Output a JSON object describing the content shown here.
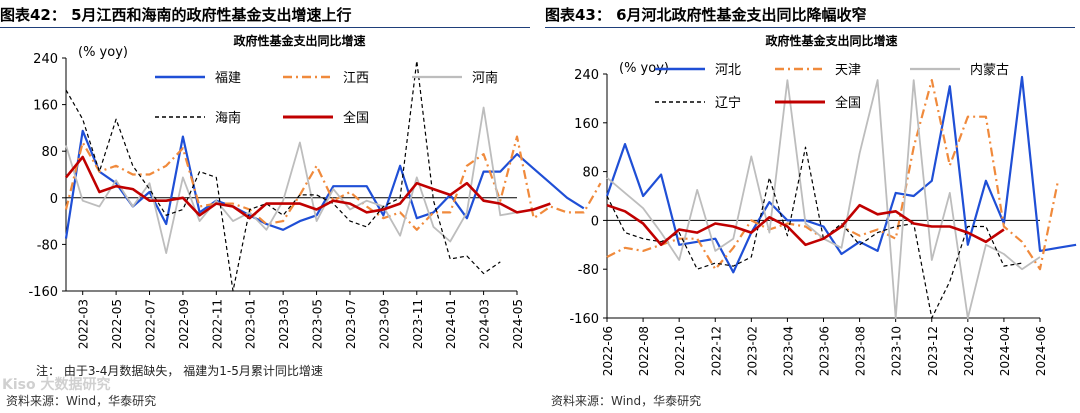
{
  "panels": [
    {
      "figure_title": "图表42：   5月江西和海南的政府性基金支出增速上行",
      "note": "注：  由于3-4月数据缺失，  福建为1-5月累计同比增速",
      "source": "资料来源：Wind，华泰研究",
      "chart_data": {
        "type": "line",
        "title": "政府性基金支出同比增速",
        "ylabel": "(% yoy)",
        "ylim": [
          -160,
          240
        ],
        "yticks": [
          "240",
          "160",
          "80",
          "0",
          "-80",
          "-160"
        ],
        "ytick_values": [
          240,
          160,
          80,
          0,
          -80,
          -160
        ],
        "x_tick_labels": [
          "2022-03",
          "2022-05",
          "2022-07",
          "2022-09",
          "2022-11",
          "2023-01",
          "2023-03",
          "2023-05",
          "2023-07",
          "2023-09",
          "2023-11",
          "2024-01",
          "2024-03",
          "2024-05"
        ],
        "x_tick_index": [
          1,
          3,
          5,
          7,
          9,
          11,
          13,
          15,
          17,
          19,
          21,
          23,
          25,
          27
        ],
        "n_points": 28,
        "legend_placement": "top",
        "series": [
          {
            "name": "福建",
            "color": "#1f4fd6",
            "style": "solid",
            "width": 2.2,
            "values": [
              -70,
              115,
              45,
              25,
              -15,
              10,
              -45,
              105,
              -25,
              -5,
              -15,
              -30,
              -45,
              -55,
              -40,
              -30,
              20,
              20,
              20,
              -30,
              55,
              -35,
              -25,
              5,
              -35,
              45,
              45,
              75,
              50,
              25,
              0,
              -18
            ]
          },
          {
            "name": "江西",
            "color": "#f08a3c",
            "style": "dashdot",
            "width": 2.2,
            "values": [
              -20,
              95,
              45,
              55,
              40,
              40,
              55,
              85,
              -15,
              -10,
              -10,
              -20,
              -45,
              -40,
              5,
              55,
              -5,
              10,
              -15,
              -35,
              -25,
              -55,
              -25,
              -25,
              55,
              75,
              -5,
              105,
              -35,
              -15,
              -25,
              -25,
              25
            ]
          },
          {
            "name": "河南",
            "color": "#bdbdbd",
            "style": "solid",
            "width": 1.8,
            "values": [
              90,
              -5,
              -15,
              30,
              -15,
              25,
              -95,
              35,
              -40,
              -5,
              -40,
              -25,
              -55,
              -5,
              95,
              -40,
              15,
              -20,
              -5,
              -15,
              -65,
              35,
              -50,
              -75,
              -25,
              155,
              -30,
              -25,
              -20
            ]
          },
          {
            "name": "海南",
            "color": "#000000",
            "style": "dashed",
            "width": 1.2,
            "values": [
              185,
              135,
              45,
              135,
              55,
              15,
              -30,
              -20,
              45,
              35,
              -160,
              -20,
              -10,
              -30,
              5,
              5,
              -10,
              -40,
              -50,
              -15,
              0,
              235,
              -5,
              -105,
              -100,
              -130,
              -110
            ]
          },
          {
            "name": "全国",
            "color": "#c00000",
            "style": "solid",
            "width": 2.6,
            "values": [
              35,
              70,
              10,
              20,
              15,
              -5,
              -5,
              0,
              -30,
              -10,
              -15,
              -35,
              -10,
              -10,
              -10,
              -20,
              -5,
              -10,
              -25,
              -20,
              -10,
              25,
              15,
              5,
              25,
              -5,
              -10,
              -25,
              -20,
              -10
            ]
          }
        ]
      }
    },
    {
      "figure_title": "图表43：   6月河北政府性基金支出同比降幅收窄",
      "note": "",
      "source": "资料来源：Wind，华泰研究",
      "chart_data": {
        "type": "line",
        "title": "政府性基金支出同比增速",
        "ylabel": "(% yoy)",
        "ylim": [
          -160,
          240
        ],
        "yticks": [
          "240",
          "160",
          "80",
          "0",
          "-80",
          "-160"
        ],
        "ytick_values": [
          240,
          160,
          80,
          0,
          -80,
          -160
        ],
        "x_tick_labels": [
          "2022-06",
          "2022-08",
          "2022-10",
          "2022-12",
          "2023-02",
          "2023-04",
          "2023-06",
          "2023-08",
          "2023-10",
          "2023-12",
          "2024-02",
          "2024-04",
          "2024-06"
        ],
        "x_tick_index": [
          0,
          2,
          4,
          6,
          8,
          10,
          12,
          14,
          16,
          18,
          20,
          22,
          24
        ],
        "n_points": 25,
        "legend_placement": "top",
        "series": [
          {
            "name": "河北",
            "color": "#1f4fd6",
            "style": "solid",
            "width": 2.2,
            "values": [
              40,
              125,
              40,
              75,
              -40,
              -35,
              -30,
              -85,
              -20,
              30,
              0,
              0,
              -10,
              -55,
              -35,
              -50,
              45,
              40,
              65,
              220,
              -40,
              65,
              -5,
              235,
              -50,
              -45,
              -40
            ]
          },
          {
            "name": "天津",
            "color": "#f08a3c",
            "style": "dashdot",
            "width": 2.2,
            "values": [
              -60,
              -45,
              -50,
              -40,
              -30,
              -30,
              -80,
              -45,
              0,
              -15,
              -5,
              -10,
              -30,
              -10,
              -25,
              -15,
              -30,
              120,
              230,
              90,
              170,
              170,
              -10,
              -35,
              -80,
              65
            ]
          },
          {
            "name": "内蒙古",
            "color": "#bdbdbd",
            "style": "solid",
            "width": 1.8,
            "values": [
              70,
              45,
              20,
              -20,
              -65,
              50,
              -50,
              -30,
              105,
              -20,
              230,
              -5,
              -30,
              -45,
              110,
              230,
              -160,
              230,
              -65,
              45,
              -160,
              -40,
              -55,
              -80,
              -60
            ]
          },
          {
            "name": "辽宁",
            "color": "#000000",
            "style": "dashed",
            "width": 1.2,
            "values": [
              40,
              -20,
              -30,
              -35,
              -20,
              -80,
              -70,
              -75,
              -60,
              70,
              -25,
              120,
              -30,
              -5,
              -40,
              -20,
              -10,
              -5,
              -160,
              -100,
              -10,
              -10,
              -75,
              -70
            ]
          },
          {
            "name": "全国",
            "color": "#c00000",
            "style": "solid",
            "width": 2.6,
            "values": [
              25,
              15,
              -5,
              -40,
              -15,
              -20,
              -5,
              -10,
              -20,
              5,
              -10,
              -40,
              -30,
              -10,
              25,
              10,
              15,
              -5,
              -10,
              -10,
              -20,
              -35,
              -15
            ]
          }
        ]
      }
    }
  ],
  "watermark": "Kiso 大数据研究"
}
